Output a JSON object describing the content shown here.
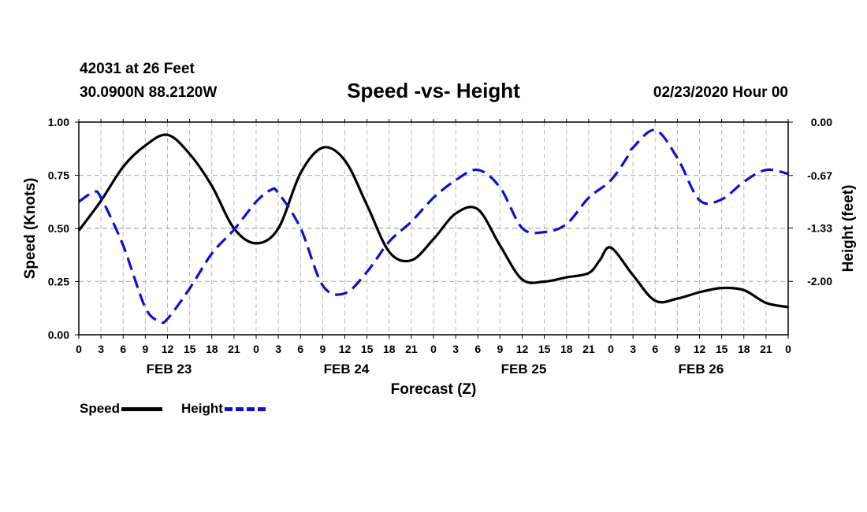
{
  "header": {
    "station": "42031 at 26 Feet",
    "coords": "30.0900N 88.2120W",
    "datetime": "02/23/2020 Hour 00"
  },
  "legend": {
    "speed_label": "Speed",
    "height_label": "Height"
  },
  "colors": {
    "speed": "#000000",
    "height": "#1010cc",
    "grid": "#b8b8b8"
  },
  "chart_data": {
    "type": "line",
    "title": "Speed -vs- Height",
    "xlabel": "Forecast (Z)",
    "ylabel": "Speed (Knots)",
    "y2label": "Height (feet)",
    "xlim": [
      0,
      96
    ],
    "ylim": [
      0,
      1.0
    ],
    "y2lim": [
      -2.67,
      0
    ],
    "yticks": [
      "0.00",
      "0.25",
      "0.50",
      "0.75",
      "1.00"
    ],
    "y2ticks": [
      "0.00",
      "-0.67",
      "-1.33",
      "-2.00"
    ],
    "xtick_labels": [
      "0",
      "3",
      "6",
      "9",
      "12",
      "15",
      "18",
      "21",
      "0",
      "3",
      "6",
      "9",
      "12",
      "15",
      "18",
      "21",
      "0",
      "3",
      "6",
      "9",
      "12",
      "15",
      "18",
      "21",
      "0",
      "3",
      "6",
      "9",
      "12",
      "15",
      "18",
      "21",
      "0"
    ],
    "day_labels": [
      {
        "label": "FEB 23",
        "hour": 12
      },
      {
        "label": "FEB 24",
        "hour": 36
      },
      {
        "label": "FEB 25",
        "hour": 60
      },
      {
        "label": "FEB 26",
        "hour": 84
      }
    ],
    "grid": true,
    "legend_position": "bottom-left",
    "series": [
      {
        "name": "Speed",
        "axis": "left",
        "style": "solid",
        "x": [
          0,
          3,
          6,
          9,
          12,
          15,
          18,
          21,
          24,
          27,
          30,
          33,
          36,
          39,
          42,
          45,
          48,
          51,
          54,
          57,
          60,
          63,
          66,
          69,
          70.5,
          72,
          75,
          78,
          81,
          84,
          87,
          90,
          93,
          96
        ],
        "values": [
          0.49,
          0.63,
          0.79,
          0.89,
          0.94,
          0.85,
          0.7,
          0.5,
          0.43,
          0.5,
          0.76,
          0.88,
          0.82,
          0.61,
          0.39,
          0.35,
          0.45,
          0.57,
          0.59,
          0.42,
          0.26,
          0.25,
          0.27,
          0.29,
          0.35,
          0.41,
          0.28,
          0.16,
          0.17,
          0.2,
          0.22,
          0.21,
          0.15,
          0.13
        ]
      },
      {
        "name": "Height",
        "axis": "right",
        "style": "dashed",
        "x": [
          0,
          2,
          3,
          6,
          9,
          11,
          12,
          15,
          18,
          21,
          24,
          26,
          27,
          30,
          33,
          36,
          39,
          42,
          45,
          48,
          51,
          54,
          57,
          60,
          63,
          66,
          69,
          72,
          74.5,
          75,
          78,
          81,
          84,
          87,
          90,
          93,
          96
        ],
        "values": [
          -1.0,
          -0.88,
          -0.95,
          -1.55,
          -2.33,
          -2.5,
          -2.47,
          -2.09,
          -1.65,
          -1.35,
          -1.0,
          -0.85,
          -0.89,
          -1.33,
          -2.05,
          -2.15,
          -1.88,
          -1.5,
          -1.25,
          -0.95,
          -0.73,
          -0.6,
          -0.82,
          -1.33,
          -1.38,
          -1.28,
          -0.95,
          -0.73,
          -0.4,
          -0.32,
          -0.1,
          -0.45,
          -0.98,
          -0.97,
          -0.75,
          -0.6,
          -0.65
        ]
      }
    ]
  }
}
